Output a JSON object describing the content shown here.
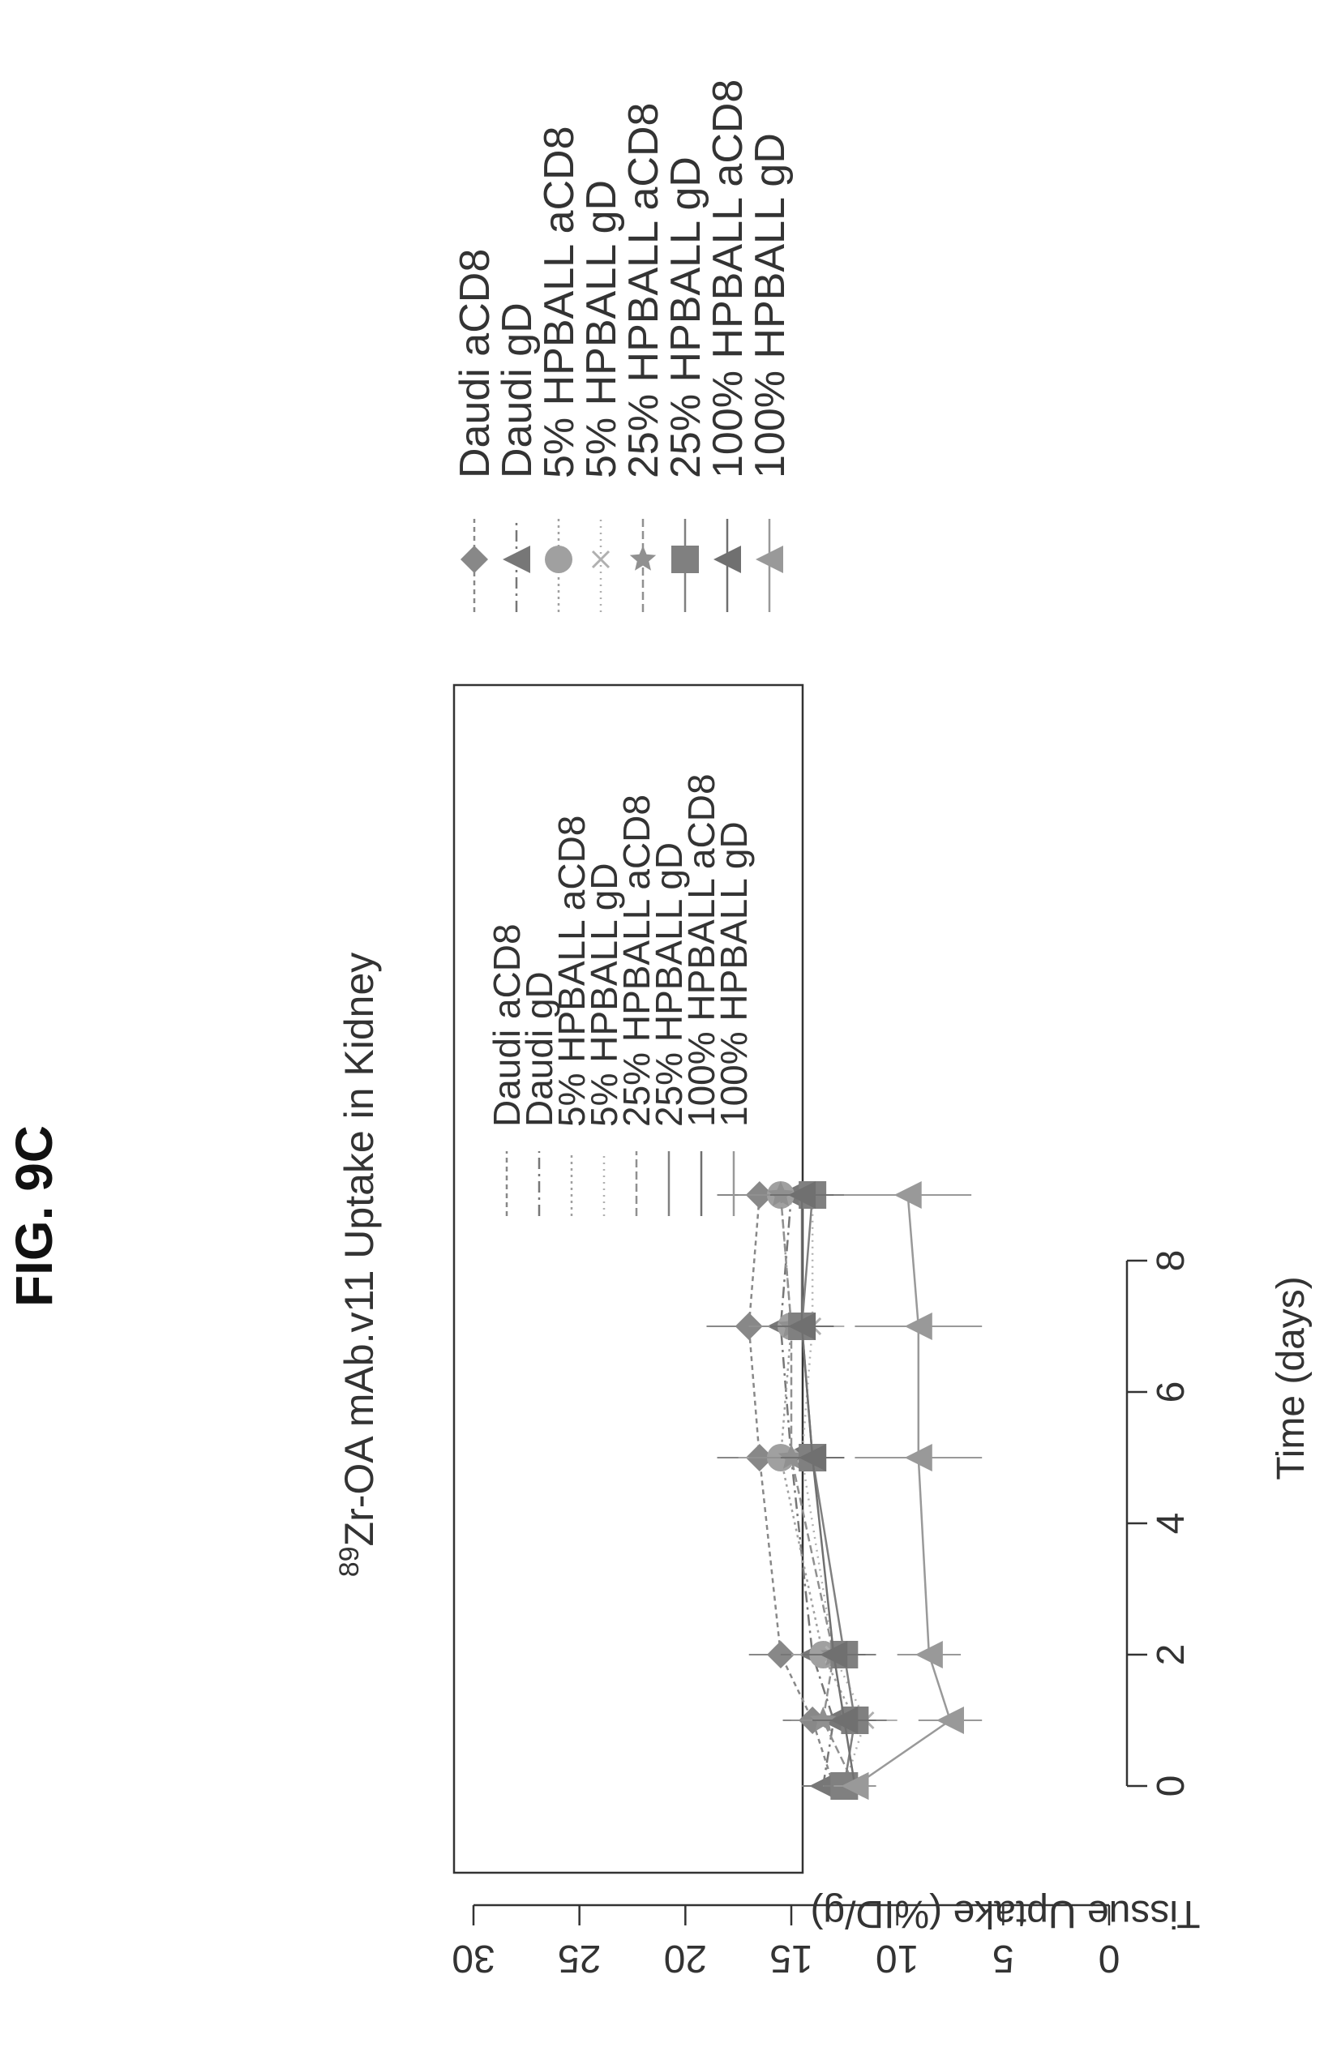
{
  "figure_label": "FIG. 9C",
  "chart_data": {
    "type": "line",
    "title_sup": "89",
    "title": "Zr-OA mAb.v11 Uptake in Kidney",
    "xlabel": "Time (days)",
    "ylabel": "Tissue Uptake (%ID/g)",
    "xlim": [
      0,
      9
    ],
    "ylim": [
      0,
      30
    ],
    "xticks": [
      "0",
      "2",
      "4",
      "6",
      "8"
    ],
    "yticks": [
      "0",
      "5",
      "10",
      "15",
      "20",
      "25",
      "30"
    ],
    "x": [
      0,
      1,
      2,
      5,
      7,
      9
    ],
    "grid": false,
    "legend_position": "inside upper-left, and beside plot",
    "series": [
      {
        "name": "Daudi aCD8",
        "marker": "diamond",
        "color": "#888888",
        "values": [
          13.0,
          14.0,
          15.5,
          16.5,
          17.0,
          16.5
        ],
        "err": [
          1.2,
          1.4,
          1.5,
          2.0,
          2.0,
          2.0
        ]
      },
      {
        "name": "Daudi gD",
        "marker": "triangle",
        "color": "#777777",
        "values": [
          13.5,
          13.0,
          14.0,
          15.0,
          15.5,
          15.0
        ],
        "err": [
          1.0,
          1.5,
          1.5,
          1.5,
          1.5,
          1.5
        ]
      },
      {
        "name": "5% HPBALL aCD8",
        "marker": "circle",
        "color": "#a0a0a0",
        "values": [
          12.5,
          12.0,
          13.5,
          15.5,
          15.0,
          15.5
        ],
        "err": [
          1.0,
          1.5,
          1.5,
          2.0,
          2.0,
          2.0
        ]
      },
      {
        "name": "5% HPBALL gD",
        "marker": "x",
        "color": "#b0b0b0",
        "values": [
          12.5,
          11.5,
          13.0,
          14.5,
          14.0,
          14.0
        ],
        "err": [
          1.0,
          1.5,
          1.5,
          1.5,
          1.5,
          1.5
        ]
      },
      {
        "name": "25% HPBALL aCD8",
        "marker": "star",
        "color": "#909090",
        "values": [
          12.0,
          13.5,
          13.0,
          15.0,
          15.0,
          15.5
        ],
        "err": [
          1.0,
          1.5,
          1.5,
          2.0,
          2.0,
          2.0
        ]
      },
      {
        "name": "25% HPBALL gD",
        "marker": "square",
        "color": "#808080",
        "values": [
          12.5,
          12.0,
          12.5,
          14.0,
          14.5,
          14.0
        ],
        "err": [
          1.0,
          1.5,
          1.5,
          1.5,
          1.5,
          1.5
        ]
      },
      {
        "name": "100% HPBALL aCD8",
        "marker": "triangle",
        "color": "#707070",
        "values": [
          12.0,
          12.5,
          13.0,
          14.0,
          14.5,
          14.5
        ],
        "err": [
          1.0,
          1.5,
          1.5,
          1.5,
          1.5,
          1.5
        ]
      },
      {
        "name": "100% HPBALL gD",
        "marker": "triangle",
        "color": "#999999",
        "values": [
          12.0,
          7.5,
          8.5,
          9.0,
          9.0,
          9.5
        ],
        "err": [
          1.0,
          1.5,
          1.5,
          3.0,
          3.0,
          3.0
        ]
      }
    ]
  }
}
